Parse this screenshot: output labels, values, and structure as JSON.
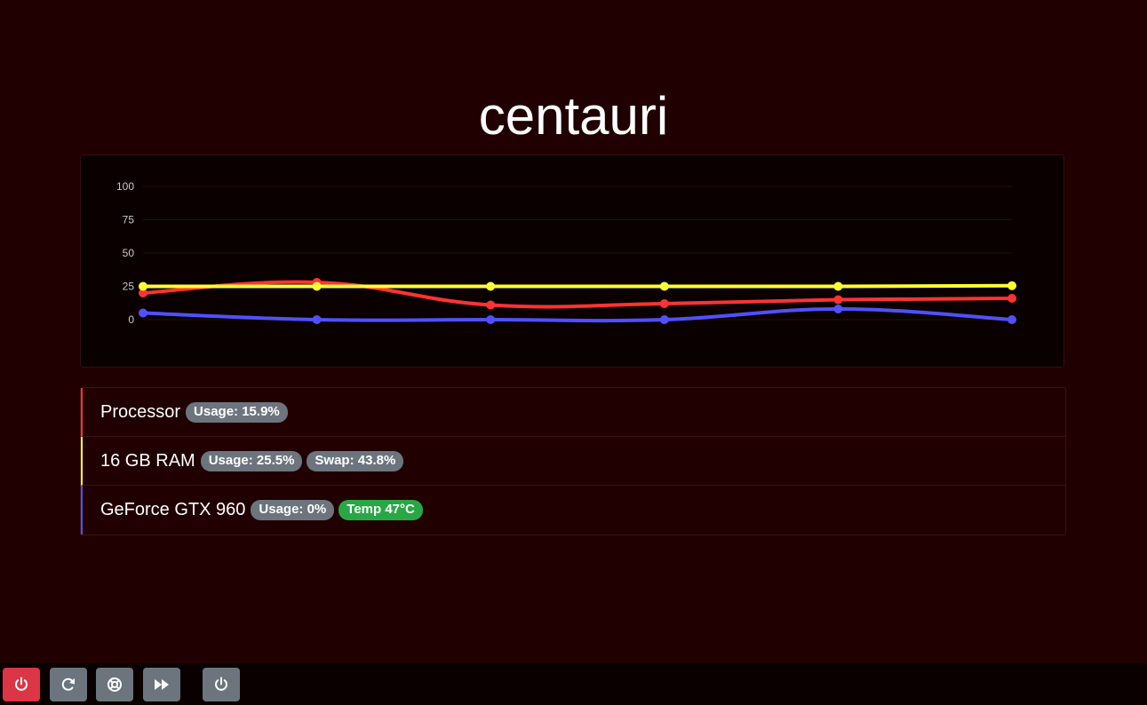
{
  "page": {
    "title": "centauri"
  },
  "chart_data": {
    "type": "line",
    "x": [
      1,
      2,
      3,
      4,
      5,
      6
    ],
    "yticks": [
      "0",
      "25",
      "50",
      "75",
      "100"
    ],
    "ylim": [
      0,
      100
    ],
    "grid": true,
    "series": [
      {
        "color": "#ff3333",
        "values": [
          20,
          28,
          11,
          12,
          15,
          16
        ]
      },
      {
        "color": "#ffff33",
        "values": [
          25,
          25,
          25,
          25,
          25,
          25.5
        ]
      },
      {
        "color": "#5050ff",
        "values": [
          5,
          0,
          0,
          0,
          8,
          0
        ]
      }
    ]
  },
  "devices": [
    {
      "name": "Processor",
      "color": "#ff3333",
      "badges": [
        {
          "text": "Usage: 15.9%",
          "kind": "secondary"
        }
      ]
    },
    {
      "name": "16 GB RAM",
      "color": "#ffff33",
      "badges": [
        {
          "text": "Usage: 25.5%",
          "kind": "secondary"
        },
        {
          "text": "Swap: 43.8%",
          "kind": "secondary"
        }
      ]
    },
    {
      "name": "GeForce GTX 960",
      "color": "#5050ff",
      "badges": [
        {
          "text": "Usage: 0%",
          "kind": "secondary"
        },
        {
          "text": "Temp 47°C",
          "kind": "success"
        }
      ]
    }
  ],
  "toolbar": {
    "buttons": [
      {
        "icon": "power-icon",
        "color": "#dc3545"
      },
      {
        "icon": "restart-icon",
        "color": "#6c757d"
      },
      {
        "icon": "lifebuoy-icon",
        "color": "#6c757d"
      },
      {
        "icon": "fast-forward-icon",
        "color": "#6c757d"
      },
      {
        "icon": "power-icon",
        "color": "#6c757d"
      }
    ]
  }
}
